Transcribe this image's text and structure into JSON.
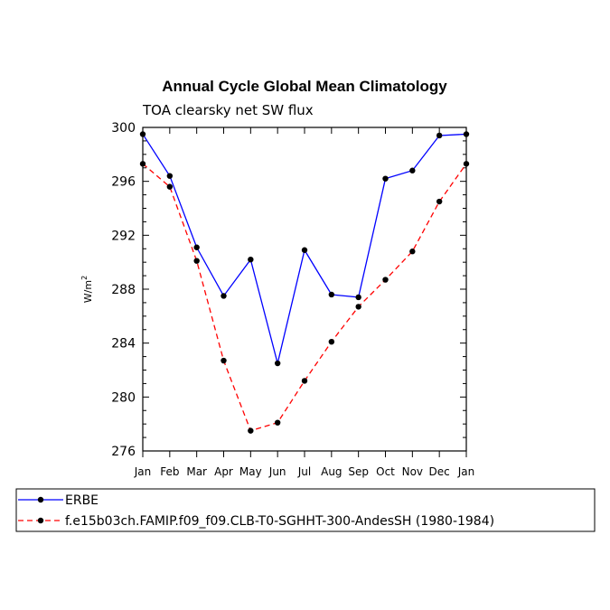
{
  "chart_data": {
    "type": "line",
    "title": "Annual Cycle Global Mean Climatology",
    "subtitle": "TOA clearsky net SW flux",
    "ylabel_base": "W/m",
    "ylabel_sup": "2",
    "ylim": [
      276,
      300
    ],
    "yticks": [
      "276",
      "280",
      "284",
      "288",
      "292",
      "296",
      "300"
    ],
    "categories": [
      "Jan",
      "Feb",
      "Mar",
      "Apr",
      "May",
      "Jun",
      "Jul",
      "Aug",
      "Sep",
      "Oct",
      "Nov",
      "Dec",
      "Jan"
    ],
    "series": [
      {
        "name": "ERBE",
        "color": "#0000ff",
        "dash": "solid",
        "values": [
          299.5,
          296.4,
          291.1,
          287.5,
          290.2,
          282.5,
          290.9,
          287.6,
          287.4,
          296.2,
          296.8,
          299.4,
          299.5
        ]
      },
      {
        "name": "f.e15b03ch.FAMIP.f09_f09.CLB-T0-SGHHT-300-AndesSH (1980-1984)",
        "color": "#ff0000",
        "dash": "dashed",
        "values": [
          297.3,
          295.6,
          290.1,
          282.7,
          277.5,
          278.1,
          281.2,
          284.1,
          286.7,
          288.7,
          290.8,
          294.5,
          297.3
        ]
      }
    ],
    "legend_position": "bottom"
  }
}
